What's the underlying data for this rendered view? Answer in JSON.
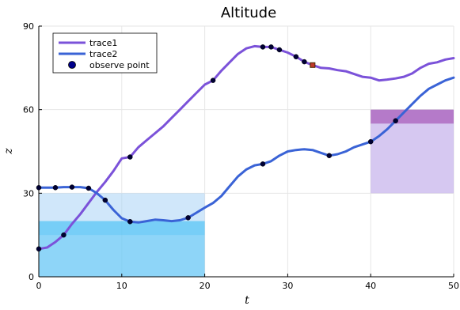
{
  "chart_data": {
    "type": "line",
    "title": "Altitude",
    "xlabel": "t",
    "ylabel": "z",
    "xlim": [
      0,
      50
    ],
    "ylim": [
      0,
      90
    ],
    "xticks": [
      "0",
      "10",
      "20",
      "30",
      "40",
      "50"
    ],
    "yticks": [
      "0",
      "30",
      "60",
      "90"
    ],
    "grid": true,
    "legend_position": "top-left",
    "series": [
      {
        "name": "trace1",
        "color": "#7b52d9",
        "x": [
          0,
          1,
          2,
          3,
          4,
          5,
          6,
          7,
          8,
          9,
          10,
          11,
          12,
          13,
          14,
          15,
          16,
          17,
          18,
          19,
          20,
          21,
          22,
          23,
          24,
          25,
          26,
          27,
          28,
          29,
          30,
          31,
          32,
          33,
          34,
          35,
          36,
          37,
          38,
          39,
          40,
          41,
          42,
          43,
          44,
          45,
          46,
          47,
          48,
          49,
          50
        ],
        "values": [
          10,
          10.5,
          12.5,
          15,
          19,
          22.5,
          26.5,
          30.5,
          34,
          38,
          42.5,
          43,
          46.5,
          49,
          51.5,
          54,
          57,
          60,
          63,
          66,
          69,
          70.5,
          74,
          77,
          80,
          82,
          82.8,
          82.5,
          82.5,
          81.5,
          80.5,
          79,
          77.2,
          76,
          75,
          74.8,
          74.2,
          73.8,
          72.8,
          71.8,
          71.5,
          70.5,
          70.8,
          71.2,
          71.8,
          73,
          75,
          76.5,
          77,
          78,
          78.5
        ]
      },
      {
        "name": "trace2",
        "color": "#3a63d6",
        "x": [
          0,
          1,
          2,
          3,
          4,
          5,
          6,
          7,
          8,
          9,
          10,
          11,
          12,
          13,
          14,
          15,
          16,
          17,
          18,
          19,
          20,
          21,
          22,
          23,
          24,
          25,
          26,
          27,
          28,
          29,
          30,
          31,
          32,
          33,
          34,
          35,
          36,
          37,
          38,
          39,
          40,
          41,
          42,
          43,
          44,
          45,
          46,
          47,
          48,
          49,
          50
        ],
        "values": [
          32,
          32,
          32,
          32.2,
          32.2,
          32.2,
          31.8,
          30,
          27.5,
          24,
          21,
          19.8,
          19.5,
          20,
          20.5,
          20.3,
          20,
          20.3,
          21.2,
          23,
          24.8,
          26.5,
          29,
          32.5,
          36,
          38.5,
          40,
          40.5,
          41.5,
          43.5,
          45,
          45.5,
          45.8,
          45.5,
          44.5,
          43.5,
          44,
          45,
          46.5,
          47.5,
          48.5,
          50.5,
          53,
          56,
          59,
          62,
          65,
          67.5,
          69,
          70.5,
          71.5
        ]
      }
    ],
    "observe_points": {
      "name": "observe point",
      "color": "#00008b",
      "points": [
        {
          "x": 0,
          "y": 10
        },
        {
          "x": 3,
          "y": 15
        },
        {
          "x": 11,
          "y": 43
        },
        {
          "x": 21,
          "y": 70.5
        },
        {
          "x": 27,
          "y": 82.5
        },
        {
          "x": 28,
          "y": 82.5
        },
        {
          "x": 29,
          "y": 81.5
        },
        {
          "x": 31,
          "y": 79
        },
        {
          "x": 32,
          "y": 77.2
        },
        {
          "x": 0,
          "y": 32
        },
        {
          "x": 2,
          "y": 32
        },
        {
          "x": 4,
          "y": 32.2
        },
        {
          "x": 6,
          "y": 31.8
        },
        {
          "x": 8,
          "y": 27.5
        },
        {
          "x": 11,
          "y": 19.8
        },
        {
          "x": 18,
          "y": 21.2
        },
        {
          "x": 27,
          "y": 40.5
        },
        {
          "x": 35,
          "y": 43.5
        },
        {
          "x": 40,
          "y": 48.5
        },
        {
          "x": 43,
          "y": 56
        }
      ]
    },
    "special_marker": {
      "x": 33,
      "y": 76,
      "color": "#c0392b",
      "border": "#4a2a00"
    },
    "regions": [
      {
        "x0": 0,
        "x1": 20,
        "y0": 0,
        "y1": 30,
        "color": "#aad4f5",
        "opacity": 0.55
      },
      {
        "x0": 0,
        "x1": 20,
        "y0": 0,
        "y1": 20,
        "color": "#4cc3f5",
        "opacity": 0.5
      },
      {
        "x0": 0,
        "x1": 20,
        "y0": 15,
        "y1": 20,
        "color": "#4cc3f5",
        "opacity": 0.35
      },
      {
        "x0": 40,
        "x1": 50,
        "y0": 30,
        "y1": 60,
        "color": "#b49ae6",
        "opacity": 0.55
      },
      {
        "x0": 40,
        "x1": 50,
        "y0": 55,
        "y1": 60,
        "color": "#9a3aa8",
        "opacity": 0.55
      }
    ]
  }
}
